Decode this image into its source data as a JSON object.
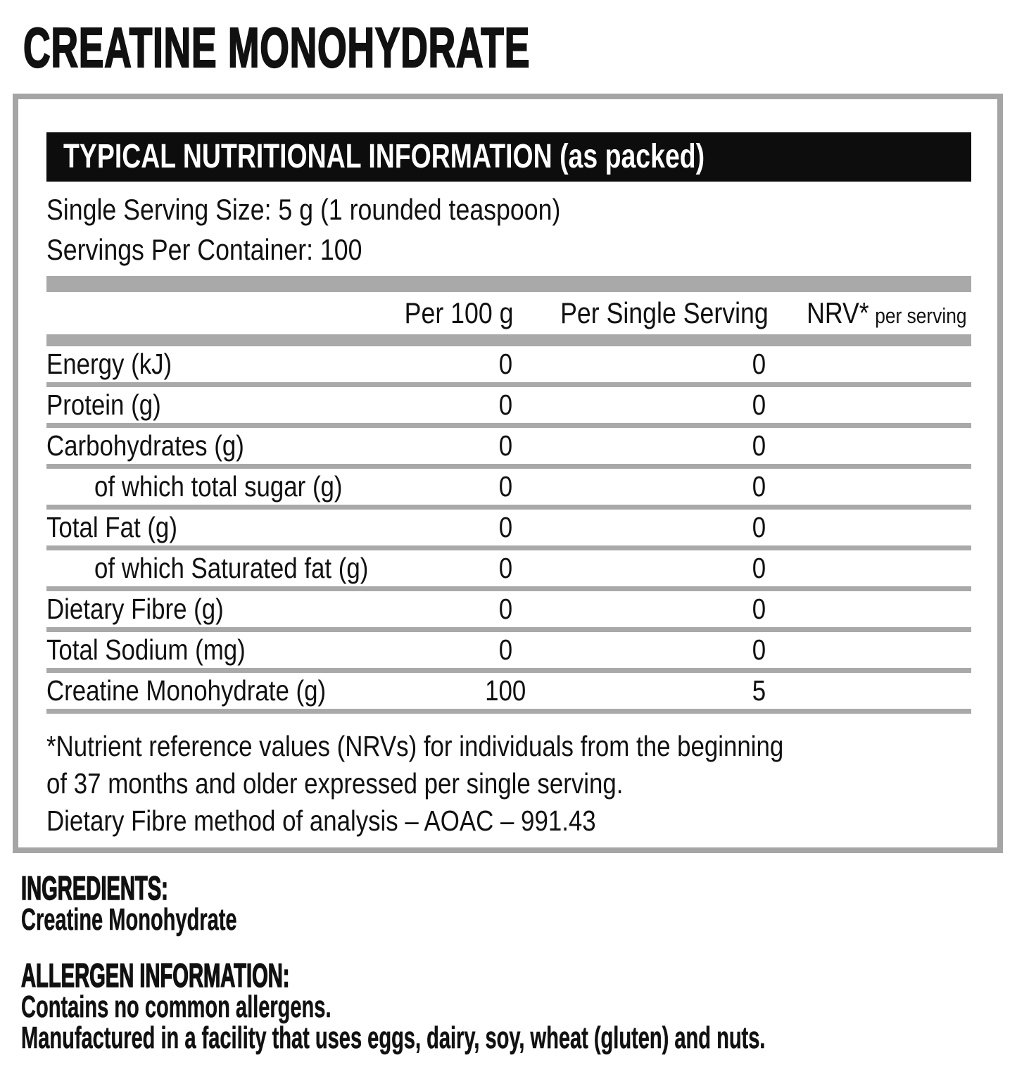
{
  "product_title": "CREATINE MONOHYDRATE",
  "panel": {
    "header": "TYPICAL NUTRITIONAL INFORMATION (as packed)",
    "serving_size_line": "Single Serving Size: 5 g (1 rounded teaspoon)",
    "servings_line": "Servings Per Container: 100",
    "columns": {
      "per_100g": "Per 100 g",
      "per_serving": "Per Single Serving",
      "nrv": "NRV*",
      "nrv_sub": "per serving"
    },
    "rows": [
      {
        "label": "Energy (kJ)",
        "per100": "0",
        "perServing": "0",
        "nrv": ""
      },
      {
        "label": "Protein (g)",
        "per100": "0",
        "perServing": "0",
        "nrv": ""
      },
      {
        "label": "Carbohydrates (g)",
        "per100": "0",
        "perServing": "0",
        "nrv": ""
      },
      {
        "label": "of which total sugar (g)",
        "per100": "0",
        "perServing": "0",
        "nrv": ""
      },
      {
        "label": "Total Fat (g)",
        "per100": "0",
        "perServing": "0",
        "nrv": ""
      },
      {
        "label": "of which Saturated fat (g)",
        "per100": "0",
        "perServing": "0",
        "nrv": ""
      },
      {
        "label": "Dietary Fibre (g)",
        "per100": "0",
        "perServing": "0",
        "nrv": ""
      },
      {
        "label": "Total Sodium (mg)",
        "per100": "0",
        "perServing": "0",
        "nrv": ""
      },
      {
        "label": "Creatine Monohydrate (g)",
        "per100": "100",
        "perServing": "5",
        "nrv": ""
      }
    ],
    "footnotes": [
      "*Nutrient reference values (NRVs) for individuals from the beginning",
      "of 37 months and older expressed per single serving.",
      "Dietary Fibre method of analysis – AOAC – 991.43"
    ]
  },
  "ingredients": {
    "heading": "INGREDIENTS:",
    "body": "Creatine Monohydrate"
  },
  "allergens": {
    "heading": "ALLERGEN INFORMATION:",
    "line1": "Contains no common allergens.",
    "line2": "Manufactured in a facility that uses eggs, dairy, soy, wheat (gluten) and nuts."
  },
  "colors": {
    "header_bar": "#0d0d0d",
    "separator_gray": "#a9a9a9"
  }
}
